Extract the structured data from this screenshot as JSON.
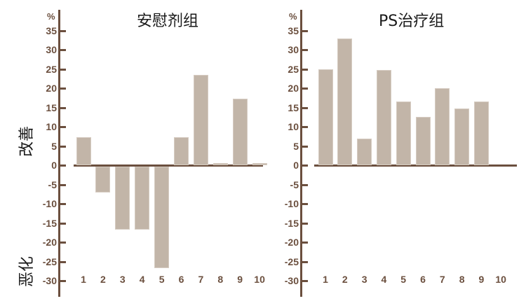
{
  "side_labels": {
    "improve": "改善",
    "worsen": "恶化"
  },
  "colors": {
    "axis": "#6b4f3e",
    "bar": "#c2b5a8",
    "title": "#1a1a1a"
  },
  "chart_data": [
    {
      "type": "bar",
      "title": "安慰剂组",
      "xlabel": "",
      "ylabel": "%",
      "ylim": [
        -30,
        35
      ],
      "yticks": [
        35,
        30,
        25,
        20,
        15,
        10,
        5,
        0,
        -5,
        -10,
        -15,
        -20,
        -25,
        -30
      ],
      "categories": [
        "1",
        "2",
        "3",
        "4",
        "5",
        "6",
        "7",
        "8",
        "9",
        "10"
      ],
      "values": [
        7.3,
        -6.7,
        -16.4,
        -16.4,
        -26.4,
        7.3,
        23.5,
        0.5,
        17.3,
        0.5
      ],
      "grid": false,
      "annotations": {
        "positive_region": "改善",
        "negative_region": "恶化"
      }
    },
    {
      "type": "bar",
      "title": "PS治疗组",
      "xlabel": "",
      "ylabel": "%",
      "ylim": [
        -30,
        35
      ],
      "yticks": [
        35,
        30,
        25,
        20,
        15,
        10,
        5,
        0,
        -5,
        -10,
        -15,
        -20,
        -25,
        -30
      ],
      "categories": [
        "1",
        "2",
        "3",
        "4",
        "5",
        "6",
        "7",
        "8",
        "9",
        "10"
      ],
      "values": [
        25,
        33,
        7,
        24.7,
        16.6,
        12.5,
        20,
        14.7,
        16.6,
        0
      ],
      "grid": false
    }
  ]
}
